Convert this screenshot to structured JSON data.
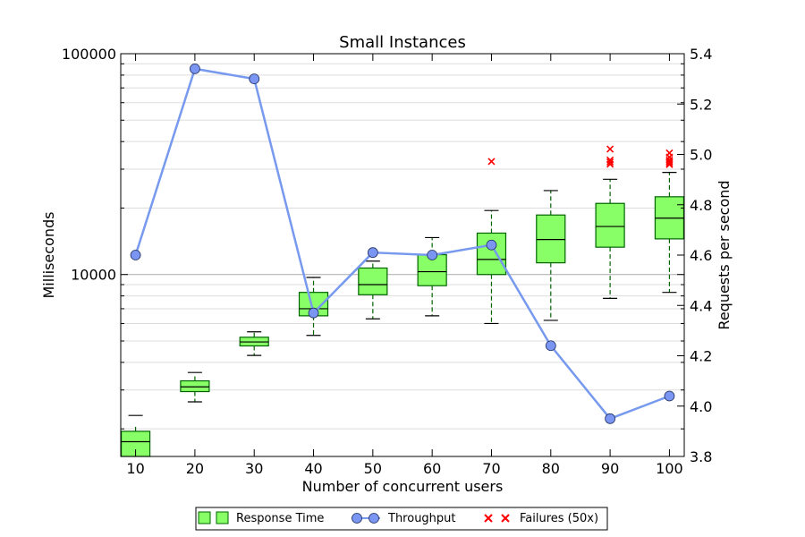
{
  "chart_data": {
    "type": "box+line",
    "title": "Small Instances",
    "xlabel": "Number of concurrent users",
    "ylabel_left": "Milliseconds",
    "ylabel_right": "Requests per second",
    "left_scale": "log",
    "left_ylim": [
      1500,
      100000
    ],
    "right_ylim": [
      3.8,
      5.4
    ],
    "x": [
      10,
      20,
      30,
      40,
      50,
      60,
      70,
      80,
      90,
      100
    ],
    "xlim": [
      7.5,
      102.5
    ],
    "left_tick_labels": [
      "10000",
      "100000"
    ],
    "left_ticks": [
      10000,
      100000
    ],
    "right_tick_labels": [
      "3.8",
      "4.0",
      "4.2",
      "4.4",
      "4.6",
      "4.8",
      "5.0",
      "5.2",
      "5.4"
    ],
    "right_ticks": [
      3.8,
      4.0,
      4.2,
      4.4,
      4.6,
      4.8,
      5.0,
      5.2,
      5.4
    ],
    "grid": true,
    "legend_position": "bottom-center",
    "series": [
      {
        "name": "Response Time",
        "kind": "box",
        "color": "#88ff66",
        "edge": "#006400",
        "boxes": [
          {
            "x": 10,
            "whislo": 1000,
            "q1": 1000,
            "med": 1750,
            "q3": 1950,
            "whishi": 2050,
            "cap": 2300
          },
          {
            "x": 20,
            "whislo": 2650,
            "q1": 2950,
            "med": 3100,
            "q3": 3300,
            "whishi": 3550,
            "cap": 3600
          },
          {
            "x": 30,
            "whislo": 4300,
            "q1": 4750,
            "med": 4950,
            "q3": 5200,
            "whishi": 5500,
            "cap": 5500
          },
          {
            "x": 40,
            "whislo": 5300,
            "q1": 6500,
            "med": 7000,
            "q3": 8300,
            "whishi": 9700,
            "cap": 9700
          },
          {
            "x": 50,
            "whislo": 6300,
            "q1": 8100,
            "med": 9000,
            "q3": 10700,
            "whishi": 11500,
            "cap": 11500
          },
          {
            "x": 60,
            "whislo": 6500,
            "q1": 8900,
            "med": 10300,
            "q3": 12300,
            "whishi": 14700,
            "cap": 14700
          },
          {
            "x": 70,
            "whislo": 6000,
            "q1": 10000,
            "med": 11700,
            "q3": 15400,
            "whishi": 19500,
            "cap": 19500
          },
          {
            "x": 80,
            "whislo": 6200,
            "q1": 11300,
            "med": 14400,
            "q3": 18600,
            "whishi": 24000,
            "cap": 24000
          },
          {
            "x": 90,
            "whislo": 7800,
            "q1": 13300,
            "med": 16500,
            "q3": 21000,
            "whishi": 27000,
            "cap": 27000
          },
          {
            "x": 100,
            "whislo": 8300,
            "q1": 14500,
            "med": 18000,
            "q3": 22500,
            "whishi": 29000,
            "cap": 29000
          }
        ]
      },
      {
        "name": "Throughput",
        "kind": "line",
        "color": "#7799ee",
        "marker_fill": "#7b96f2",
        "x": [
          10,
          20,
          30,
          40,
          50,
          60,
          70,
          80,
          90,
          100
        ],
        "values": [
          4.6,
          5.34,
          5.3,
          4.37,
          4.61,
          4.6,
          4.64,
          4.24,
          3.95,
          4.04
        ]
      },
      {
        "name": "Failures (50x)",
        "kind": "scatter",
        "color": "#ff0000",
        "points": [
          [
            70,
            32500
          ],
          [
            90,
            37000
          ],
          [
            90,
            33000
          ],
          [
            90,
            32300
          ],
          [
            90,
            31600
          ],
          [
            100,
            35500
          ],
          [
            100,
            34000
          ],
          [
            100,
            33000
          ],
          [
            100,
            32500
          ],
          [
            100,
            32000
          ],
          [
            100,
            31500
          ]
        ]
      }
    ]
  }
}
